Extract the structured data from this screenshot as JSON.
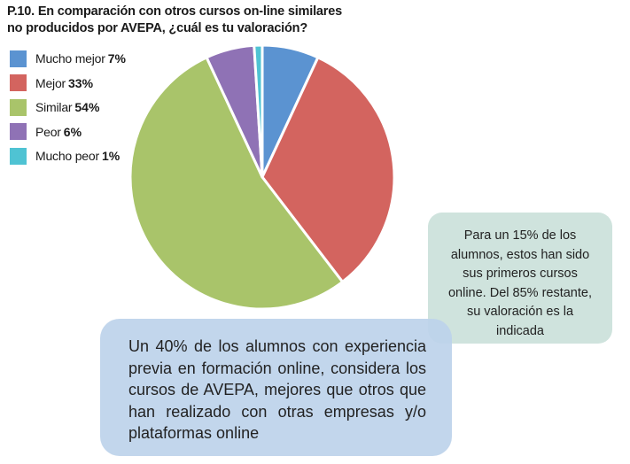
{
  "chart_data": {
    "type": "pie",
    "title": "P.10. En comparación con otros cursos on-line similares no producidos por AVEPA, ¿cuál es tu valoración?",
    "title_lines": [
      "P.10. En comparación con otros cursos on-line similares",
      "no producidos por AVEPA, ¿cuál es tu valoración?"
    ],
    "legend_position": "top-left",
    "slices": [
      {
        "label": "Mucho mejor",
        "value": 7,
        "value_label": "7%",
        "color": "#5b93d1"
      },
      {
        "label": "Mejor",
        "value": 33,
        "value_label": "33%",
        "color": "#d3645f"
      },
      {
        "label": "Similar",
        "value": 54,
        "value_label": "54%",
        "color": "#a9c46a"
      },
      {
        "label": "Peor",
        "value": 6,
        "value_label": "6%",
        "color": "#8f72b5"
      },
      {
        "label": "Mucho peor",
        "value": 1,
        "value_label": "1%",
        "color": "#4fc3d3"
      }
    ]
  },
  "notes": {
    "green": "Para un 15% de los alumnos, estos han sido sus primeros cursos online. Del 85% restante, su valoración es la indicada",
    "blue": "Un 40% de los alumnos con experiencia previa en formación online, considera los cursos de AVEPA, mejores que otros que han realizado con otras empresas y/o plataformas online"
  }
}
